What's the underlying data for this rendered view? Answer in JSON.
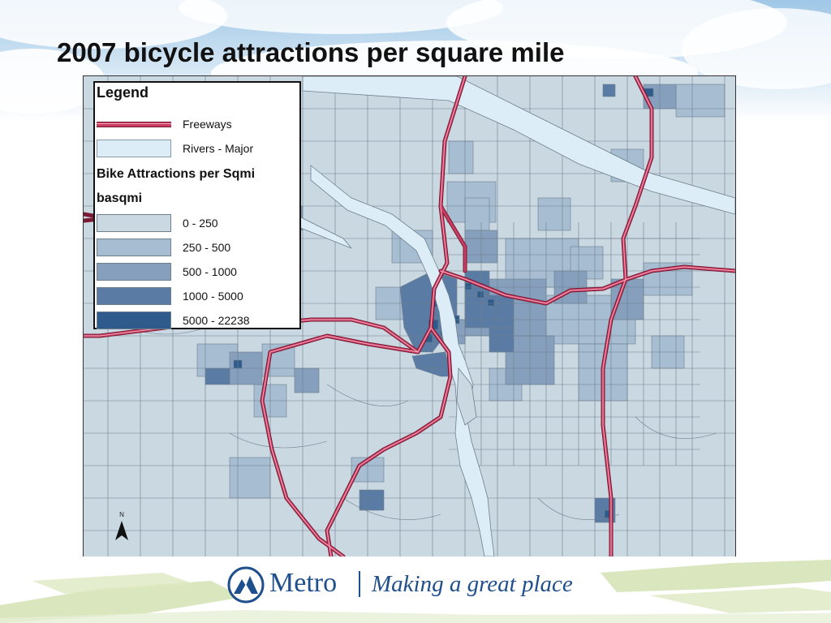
{
  "slide": {
    "title": "2007 bicycle attractions per square mile"
  },
  "legend": {
    "title": "Legend",
    "items": [
      {
        "label": "Freeways",
        "kind": "line",
        "color": "#c83c62"
      },
      {
        "label": "Rivers - Major",
        "kind": "fill",
        "color": "#dcedf8"
      }
    ],
    "field_title": "Bike Attractions per Sqmi",
    "field_name": "basqmi",
    "classes": [
      {
        "label": "0 - 250",
        "color": "#cad8e2"
      },
      {
        "label": "250 - 500",
        "color": "#a6bdd2"
      },
      {
        "label": "500 - 1000",
        "color": "#869fbc"
      },
      {
        "label": "1000 - 5000",
        "color": "#5a7ba3"
      },
      {
        "label": "5000 - 22238",
        "color": "#2f5b8c"
      }
    ]
  },
  "map": {
    "north_label": "N",
    "north_icon": "north-arrow-icon",
    "boundary_color": "#6f7f8c",
    "river_color": "#dcedf8",
    "freeway_color": "#c83c62"
  },
  "footer": {
    "brand": "Metro",
    "tagline": "Making a great place",
    "brand_color": "#1f4f8c"
  }
}
